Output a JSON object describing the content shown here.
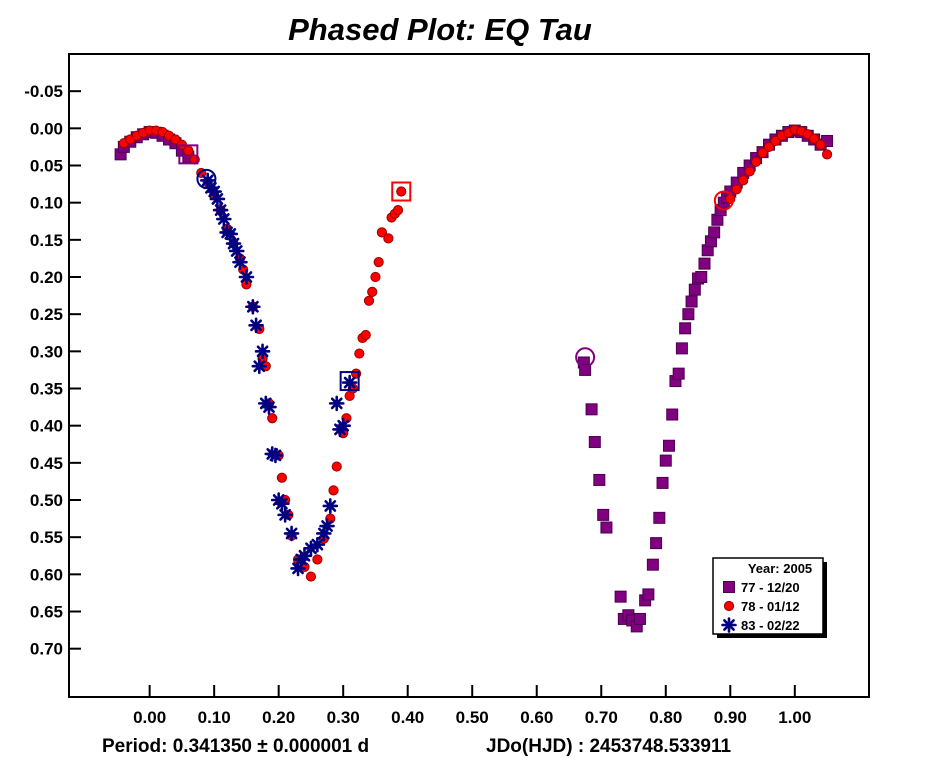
{
  "chart_data": {
    "type": "scatter",
    "title": "Phased Plot: EQ Tau",
    "footer": {
      "period": "Period: 0.341350 ± 0.000001 d",
      "epoch": "JDo(HJD) : 2453748.533911"
    },
    "x_range": [
      -0.125,
      1.115
    ],
    "y_range": [
      -0.1,
      0.765
    ],
    "y_inverted": true,
    "x_ticks": [
      {
        "v": 0.0,
        "label": "0.00"
      },
      {
        "v": 0.1,
        "label": "0.10"
      },
      {
        "v": 0.2,
        "label": "0.20"
      },
      {
        "v": 0.3,
        "label": "0.30"
      },
      {
        "v": 0.4,
        "label": "0.40"
      },
      {
        "v": 0.5,
        "label": "0.50"
      },
      {
        "v": 0.6,
        "label": "0.60"
      },
      {
        "v": 0.7,
        "label": "0.70"
      },
      {
        "v": 0.8,
        "label": "0.80"
      },
      {
        "v": 0.9,
        "label": "0.90"
      },
      {
        "v": 1.0,
        "label": "1.00"
      }
    ],
    "y_ticks": [
      {
        "v": -0.05,
        "label": "-0.05"
      },
      {
        "v": 0.0,
        "label": "0.00"
      },
      {
        "v": 0.05,
        "label": "0.05"
      },
      {
        "v": 0.1,
        "label": "0.10"
      },
      {
        "v": 0.15,
        "label": "0.15"
      },
      {
        "v": 0.2,
        "label": "0.20"
      },
      {
        "v": 0.25,
        "label": "0.25"
      },
      {
        "v": 0.3,
        "label": "0.30"
      },
      {
        "v": 0.35,
        "label": "0.35"
      },
      {
        "v": 0.4,
        "label": "0.40"
      },
      {
        "v": 0.45,
        "label": "0.45"
      },
      {
        "v": 0.5,
        "label": "0.50"
      },
      {
        "v": 0.55,
        "label": "0.55"
      },
      {
        "v": 0.6,
        "label": "0.60"
      },
      {
        "v": 0.65,
        "label": "0.65"
      },
      {
        "v": 0.7,
        "label": "0.70"
      }
    ],
    "grid": false,
    "legend": {
      "placement": "bottom-right",
      "title": "Year: 2005"
    },
    "series": [
      {
        "name": "77 - 12/20",
        "marker": "square",
        "color": "#800080",
        "edge_color": "#4b0050",
        "points": [
          [
            -0.045,
            0.035
          ],
          [
            -0.04,
            0.025
          ],
          [
            -0.03,
            0.018
          ],
          [
            -0.02,
            0.012
          ],
          [
            -0.01,
            0.008
          ],
          [
            0.0,
            0.005
          ],
          [
            0.01,
            0.006
          ],
          [
            0.02,
            0.01
          ],
          [
            0.03,
            0.015
          ],
          [
            0.04,
            0.02
          ],
          [
            0.05,
            0.03
          ],
          [
            0.06,
            0.038
          ],
          [
            0.673,
            0.315
          ],
          [
            0.675,
            0.325
          ],
          [
            0.685,
            0.378
          ],
          [
            0.69,
            0.422
          ],
          [
            0.697,
            0.473
          ],
          [
            0.703,
            0.52
          ],
          [
            0.708,
            0.537
          ],
          [
            0.73,
            0.63
          ],
          [
            0.735,
            0.66
          ],
          [
            0.742,
            0.655
          ],
          [
            0.748,
            0.662
          ],
          [
            0.755,
            0.67
          ],
          [
            0.76,
            0.66
          ],
          [
            0.768,
            0.635
          ],
          [
            0.773,
            0.627
          ],
          [
            0.78,
            0.587
          ],
          [
            0.785,
            0.558
          ],
          [
            0.79,
            0.524
          ],
          [
            0.795,
            0.477
          ],
          [
            0.8,
            0.447
          ],
          [
            0.805,
            0.427
          ],
          [
            0.81,
            0.385
          ],
          [
            0.815,
            0.34
          ],
          [
            0.82,
            0.33
          ],
          [
            0.825,
            0.296
          ],
          [
            0.83,
            0.269
          ],
          [
            0.835,
            0.25
          ],
          [
            0.84,
            0.233
          ],
          [
            0.845,
            0.217
          ],
          [
            0.85,
            0.202
          ],
          [
            0.855,
            0.2
          ],
          [
            0.86,
            0.182
          ],
          [
            0.865,
            0.164
          ],
          [
            0.87,
            0.152
          ],
          [
            0.875,
            0.14
          ],
          [
            0.88,
            0.123
          ],
          [
            0.885,
            0.11
          ],
          [
            0.89,
            0.1
          ],
          [
            0.895,
            0.093
          ],
          [
            0.9,
            0.085
          ],
          [
            0.91,
            0.073
          ],
          [
            0.92,
            0.06
          ],
          [
            0.93,
            0.05
          ],
          [
            0.94,
            0.04
          ],
          [
            0.95,
            0.032
          ],
          [
            0.96,
            0.022
          ],
          [
            0.97,
            0.015
          ],
          [
            0.98,
            0.01
          ],
          [
            0.99,
            0.005
          ],
          [
            1.0,
            0.003
          ],
          [
            1.01,
            0.005
          ],
          [
            1.02,
            0.01
          ],
          [
            1.03,
            0.015
          ],
          [
            1.04,
            0.022
          ],
          [
            1.05,
            0.017
          ]
        ]
      },
      {
        "name": "78 - 01/12",
        "marker": "circle",
        "color": "#ff0000",
        "edge_color": "#9a0000",
        "points": [
          [
            -0.04,
            0.02
          ],
          [
            -0.03,
            0.015
          ],
          [
            -0.02,
            0.01
          ],
          [
            -0.01,
            0.006
          ],
          [
            0.0,
            0.003
          ],
          [
            0.01,
            0.003
          ],
          [
            0.02,
            0.005
          ],
          [
            0.03,
            0.01
          ],
          [
            0.04,
            0.015
          ],
          [
            0.05,
            0.022
          ],
          [
            0.06,
            0.03
          ],
          [
            0.07,
            0.042
          ],
          [
            0.08,
            0.06
          ],
          [
            0.09,
            0.072
          ],
          [
            0.1,
            0.09
          ],
          [
            0.11,
            0.11
          ],
          [
            0.12,
            0.135
          ],
          [
            0.13,
            0.155
          ],
          [
            0.14,
            0.175
          ],
          [
            0.145,
            0.19
          ],
          [
            0.15,
            0.21
          ],
          [
            0.16,
            0.24
          ],
          [
            0.17,
            0.27
          ],
          [
            0.175,
            0.31
          ],
          [
            0.18,
            0.32
          ],
          [
            0.185,
            0.37
          ],
          [
            0.19,
            0.39
          ],
          [
            0.2,
            0.44
          ],
          [
            0.205,
            0.47
          ],
          [
            0.21,
            0.5
          ],
          [
            0.215,
            0.52
          ],
          [
            0.22,
            0.548
          ],
          [
            0.23,
            0.58
          ],
          [
            0.24,
            0.59
          ],
          [
            0.25,
            0.603
          ],
          [
            0.26,
            0.58
          ],
          [
            0.27,
            0.552
          ],
          [
            0.28,
            0.525
          ],
          [
            0.285,
            0.487
          ],
          [
            0.29,
            0.455
          ],
          [
            0.3,
            0.41
          ],
          [
            0.305,
            0.39
          ],
          [
            0.31,
            0.36
          ],
          [
            0.315,
            0.35
          ],
          [
            0.32,
            0.33
          ],
          [
            0.325,
            0.303
          ],
          [
            0.33,
            0.282
          ],
          [
            0.335,
            0.278
          ],
          [
            0.34,
            0.232
          ],
          [
            0.345,
            0.22
          ],
          [
            0.35,
            0.2
          ],
          [
            0.355,
            0.18
          ],
          [
            0.36,
            0.14
          ],
          [
            0.37,
            0.148
          ],
          [
            0.375,
            0.12
          ],
          [
            0.38,
            0.115
          ],
          [
            0.385,
            0.11
          ],
          [
            0.39,
            0.085
          ],
          [
            0.9,
            0.095
          ],
          [
            0.91,
            0.082
          ],
          [
            0.92,
            0.07
          ],
          [
            0.93,
            0.058
          ],
          [
            0.94,
            0.045
          ],
          [
            0.95,
            0.033
          ],
          [
            0.96,
            0.025
          ],
          [
            0.97,
            0.017
          ],
          [
            0.98,
            0.01
          ],
          [
            0.99,
            0.006
          ],
          [
            1.0,
            0.002
          ],
          [
            1.01,
            0.004
          ],
          [
            1.02,
            0.008
          ],
          [
            1.03,
            0.014
          ],
          [
            1.04,
            0.022
          ],
          [
            1.05,
            0.035
          ]
        ]
      },
      {
        "name": "83 - 02/22",
        "marker": "asterisk",
        "color": "#000080",
        "edge_color": "#000080",
        "points": [
          [
            0.09,
            0.07
          ],
          [
            0.095,
            0.08
          ],
          [
            0.1,
            0.085
          ],
          [
            0.105,
            0.095
          ],
          [
            0.11,
            0.11
          ],
          [
            0.115,
            0.122
          ],
          [
            0.12,
            0.14
          ],
          [
            0.125,
            0.142
          ],
          [
            0.13,
            0.155
          ],
          [
            0.135,
            0.165
          ],
          [
            0.14,
            0.18
          ],
          [
            0.15,
            0.2
          ],
          [
            0.16,
            0.24
          ],
          [
            0.165,
            0.265
          ],
          [
            0.17,
            0.32
          ],
          [
            0.175,
            0.3
          ],
          [
            0.18,
            0.37
          ],
          [
            0.185,
            0.375
          ],
          [
            0.19,
            0.438
          ],
          [
            0.195,
            0.44
          ],
          [
            0.2,
            0.5
          ],
          [
            0.205,
            0.505
          ],
          [
            0.21,
            0.52
          ],
          [
            0.22,
            0.545
          ],
          [
            0.23,
            0.592
          ],
          [
            0.235,
            0.58
          ],
          [
            0.24,
            0.575
          ],
          [
            0.25,
            0.565
          ],
          [
            0.26,
            0.56
          ],
          [
            0.27,
            0.545
          ],
          [
            0.275,
            0.535
          ],
          [
            0.28,
            0.508
          ],
          [
            0.29,
            0.37
          ],
          [
            0.295,
            0.405
          ],
          [
            0.3,
            0.4
          ],
          [
            0.31,
            0.342
          ]
        ]
      }
    ],
    "highlights": [
      {
        "shape": "square",
        "color": "#800080",
        "x": 0.06,
        "y": 0.035
      },
      {
        "shape": "circle",
        "color": "#800080",
        "x": 0.675,
        "y": 0.308
      },
      {
        "shape": "square",
        "color": "#ff0000",
        "x": 0.39,
        "y": 0.085
      },
      {
        "shape": "circle",
        "color": "#ff0000",
        "x": 0.89,
        "y": 0.097
      },
      {
        "shape": "square",
        "color": "#000080",
        "x": 0.31,
        "y": 0.34
      },
      {
        "shape": "circle",
        "color": "#000080",
        "x": 0.088,
        "y": 0.068
      }
    ]
  }
}
